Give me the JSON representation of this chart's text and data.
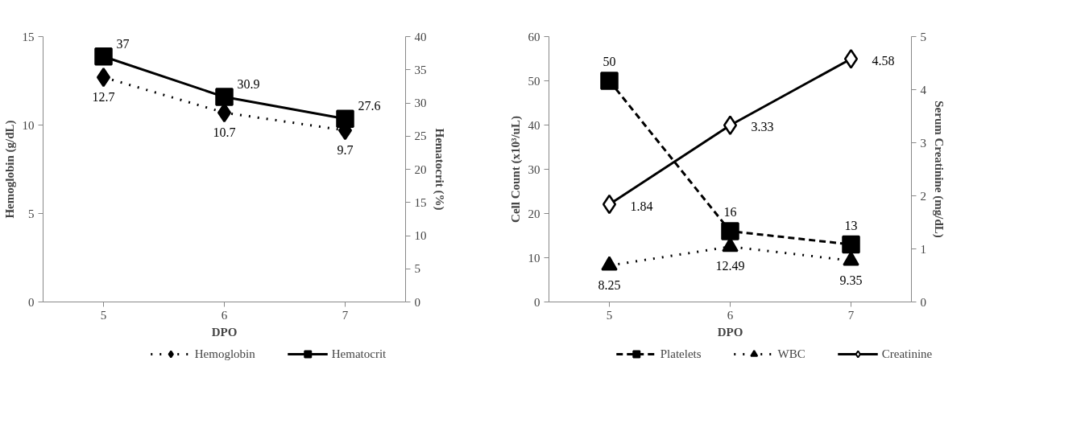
{
  "chart_data": [
    {
      "type": "line",
      "categories": [
        "5",
        "6",
        "7"
      ],
      "xlabel": "DPO",
      "ylabel": "Hemoglobin (g/dL)",
      "y2label": "Hematocrit (%)",
      "ylim": [
        0,
        15
      ],
      "yticks": [
        0,
        5,
        10,
        15
      ],
      "y2lim": [
        0,
        40
      ],
      "y2ticks": [
        0,
        5,
        10,
        15,
        20,
        25,
        30,
        35,
        40
      ],
      "data_labels": true,
      "legend": "bottom",
      "grid": false,
      "series": [
        {
          "name": "Hemoglobin",
          "color": "#000000",
          "values": [
            12.7,
            10.7,
            9.7
          ],
          "line_style": "dotted",
          "marker": "diamond"
        },
        {
          "name": "Hematocrit",
          "color": "#000000",
          "values": [
            37,
            30.9,
            27.6
          ],
          "line_style": "solid",
          "marker": "square",
          "axis": "y2"
        }
      ]
    },
    {
      "type": "line",
      "categories": [
        "5",
        "6",
        "7"
      ],
      "xlabel": "DPO",
      "ylabel": "Cell Count (x10³/uL)",
      "y2label": "Serum Creatinine (mg/dL)",
      "ylim": [
        0,
        60
      ],
      "yticks": [
        0,
        10,
        20,
        30,
        40,
        50,
        60
      ],
      "y2lim": [
        0,
        5
      ],
      "y2ticks": [
        0,
        1,
        2,
        3,
        4,
        5
      ],
      "data_labels": true,
      "legend": "bottom",
      "grid": false,
      "series": [
        {
          "name": "Platelets",
          "color": "#000000",
          "values": [
            50,
            16,
            13
          ],
          "line_style": "dashed",
          "marker": "square"
        },
        {
          "name": "WBC",
          "color": "#000000",
          "values": [
            8.25,
            12.49,
            9.35
          ],
          "line_style": "dotted",
          "marker": "triangle"
        },
        {
          "name": "Creatinine",
          "color": "#000000",
          "values": [
            1.84,
            3.33,
            4.58
          ],
          "line_style": "solid",
          "marker": "diamond",
          "axis": "y2"
        }
      ]
    }
  ]
}
